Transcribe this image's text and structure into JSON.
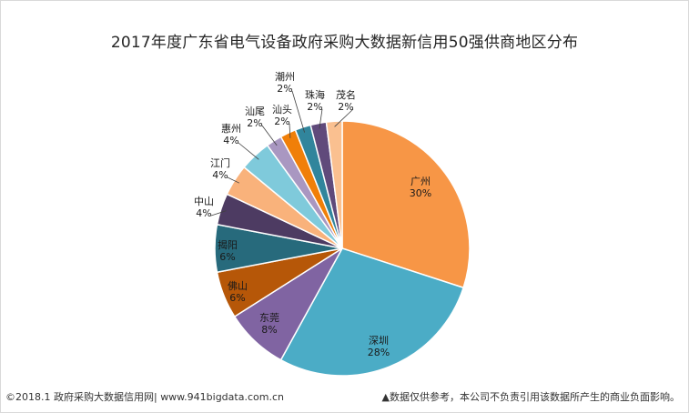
{
  "chart_data": {
    "type": "pie",
    "title": "2017年度广东省电气设备政府采购大数据新信用50强供商地区分布",
    "slices": [
      {
        "label": "广州",
        "value": 30,
        "pct_label": "30%",
        "color": "#F79646"
      },
      {
        "label": "深圳",
        "value": 28,
        "pct_label": "28%",
        "color": "#4BACC6"
      },
      {
        "label": "东莞",
        "value": 8,
        "pct_label": "8%",
        "color": "#8064A2"
      },
      {
        "label": "佛山",
        "value": 6,
        "pct_label": "6%",
        "color": "#B65708"
      },
      {
        "label": "揭阳",
        "value": 6,
        "pct_label": "6%",
        "color": "#276A7C"
      },
      {
        "label": "中山",
        "value": 4,
        "pct_label": "4%",
        "color": "#4D3B62"
      },
      {
        "label": "江门",
        "value": 4,
        "pct_label": "4%",
        "color": "#F9B27B"
      },
      {
        "label": "惠州",
        "value": 4,
        "pct_label": "4%",
        "color": "#7FCADB"
      },
      {
        "label": "汕尾",
        "value": 2,
        "pct_label": "2%",
        "color": "#A997C1"
      },
      {
        "label": "汕头",
        "value": 2,
        "pct_label": "2%",
        "color": "#F07F09"
      },
      {
        "label": "潮州",
        "value": 2,
        "pct_label": "2%",
        "color": "#31859C"
      },
      {
        "label": "珠海",
        "value": 2,
        "pct_label": "2%",
        "color": "#604A7B"
      },
      {
        "label": "茂名",
        "value": 2,
        "pct_label": "2%",
        "color": "#FAC090"
      }
    ]
  },
  "footer": {
    "left": "©2018.1 政府采购大数据信用网| www.941bigdata.com.cn",
    "right": "▲数据仅供参考，本公司不负责引用该数据所产生的商业负面影响。"
  }
}
